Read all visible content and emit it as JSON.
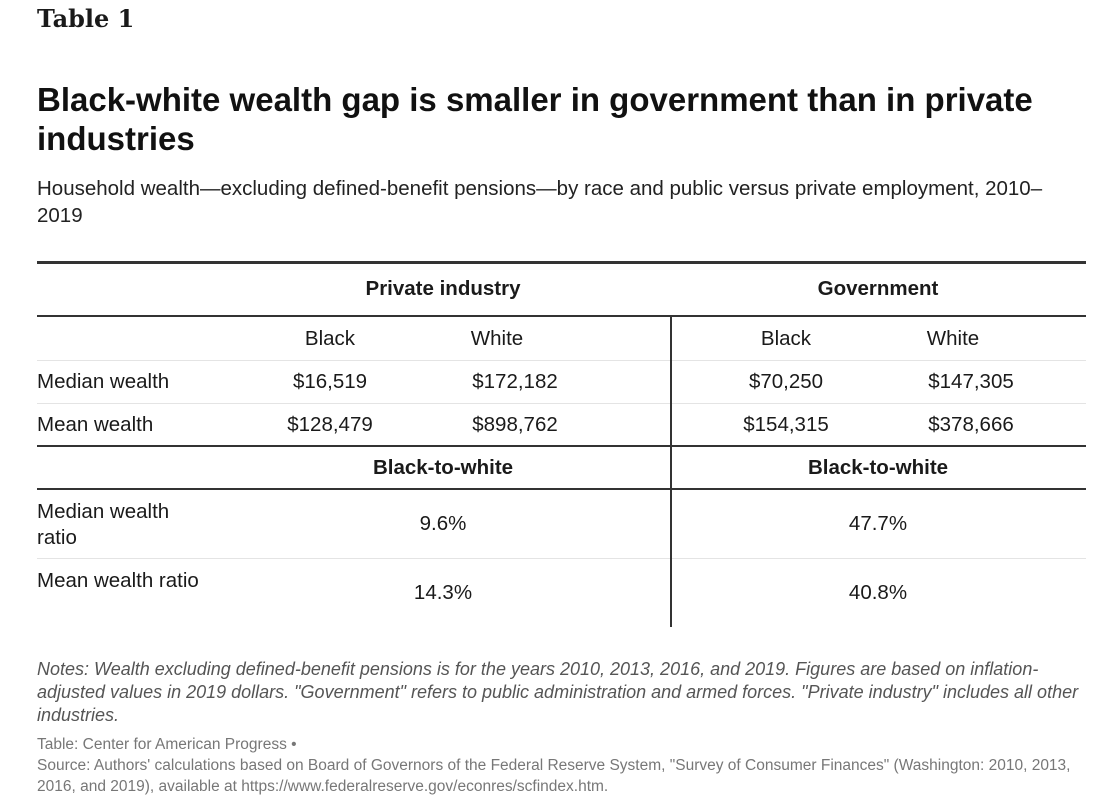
{
  "table_label": "Table 1",
  "title": "Black-white wealth gap is smaller in government than in private industries",
  "subtitle": "Household wealth—excluding defined-benefit pensions—by race and public versus private employment, 2010–2019",
  "groups": [
    "Private industry",
    "Government"
  ],
  "columns": [
    "Black",
    "White",
    "Black",
    "White"
  ],
  "rows": [
    {
      "label": "Median wealth",
      "values": [
        "$16,519",
        "$172,182",
        "$70,250",
        "$147,305"
      ]
    },
    {
      "label": "Mean wealth",
      "values": [
        "$128,479",
        "$898,762",
        "$154,315",
        "$378,666"
      ]
    }
  ],
  "ratio_header": [
    "Black-to-white",
    "Black-to-white"
  ],
  "ratio_rows": [
    {
      "label": "Median wealth ratio",
      "values": [
        "9.6%",
        "47.7%"
      ]
    },
    {
      "label": "Mean wealth ratio",
      "values": [
        "14.3%",
        "40.8%"
      ]
    }
  ],
  "notes": "Notes: Wealth excluding defined-benefit pensions is for the years 2010, 2013, 2016, and 2019. Figures are based on inflation-adjusted values in 2019 dollars. \"Government\" refers to public administration and armed forces. \"Private industry\" includes all other industries.",
  "credit_line": "Table: Center for American Progress •",
  "source": "Source: Authors' calculations based on Board of Governors of the Federal Reserve System, \"Survey of Consumer Finances\" (Washington: 2010, 2013, 2016, and 2019), available at https://www.federalreserve.gov/econres/scfindex.htm."
}
